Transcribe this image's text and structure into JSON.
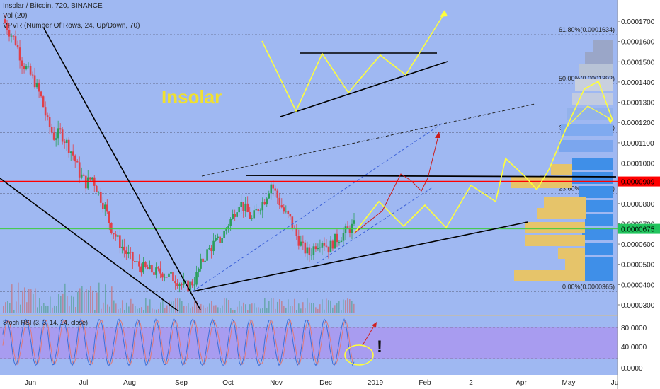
{
  "header": {
    "symbol_line": "Insolar / Bitcoin, 720, BINANCE",
    "volume_line": "Vol (20)",
    "vpvr_line": "VPVR (Number Of Rows, 24, Up/Down, 70)"
  },
  "watermark": "Insolar",
  "colors": {
    "background": "#9fb8f2",
    "rsi_band": "#a89cf0",
    "up_candle": "#2b9e5c",
    "down_candle": "#e0404a",
    "red_line": "#ff0000",
    "green_line": "#3ccc3c",
    "projection": "#ffff3a",
    "watermark": "#f0e030"
  },
  "price_axis": {
    "ticks": [
      "0.0001700",
      "0.0001600",
      "0.0001500",
      "0.0001400",
      "0.0001300",
      "0.0001200",
      "0.0001100",
      "0.0001000",
      "0.0000900",
      "0.0000800",
      "0.0000700",
      "0.0000600",
      "0.0000500",
      "0.0000400",
      "0.0000300"
    ],
    "badges": [
      {
        "label": "0.0000909",
        "value": 9.09e-05,
        "color": "#ff0000"
      },
      {
        "label": "0.0000675",
        "value": 6.75e-05,
        "color": "#22c55e"
      }
    ]
  },
  "fib_levels": [
    {
      "label": "61.80%(0.0001634)",
      "value": 0.0001634
    },
    {
      "label": "50.00%(0.0001392)",
      "value": 0.0001392
    },
    {
      "label": "38.20%(0.0001150)",
      "value": 0.000115
    },
    {
      "label": "23.60%(0.0000850)",
      "value": 8.5e-05
    },
    {
      "label": "0.00%(0.0000365)",
      "value": 3.65e-05
    }
  ],
  "time_axis": [
    "Jun",
    "Jul",
    "Aug",
    "Sep",
    "Oct",
    "Nov",
    "Dec",
    "2019",
    "Feb",
    "2",
    "Apr",
    "May",
    "Ju"
  ],
  "rsi": {
    "label": "Stoch RSI (3, 3, 14, 14, close)",
    "ticks": [
      "80.0000",
      "40.0000",
      "0.0000"
    ],
    "annotation": "!"
  },
  "chart_data": {
    "type": "candlestick",
    "title": "Insolar / Bitcoin, 720, BINANCE",
    "ylim": [
      2.6e-05,
      0.000175
    ],
    "series": [
      {
        "name": "price",
        "close": [
          0.000171,
          0.000165,
          0.00016,
          0.00015,
          0.000145,
          0.00014,
          0.000132,
          0.00012,
          0.000113,
          0.000115,
          0.00011,
          0.000104,
          9.5e-05,
          9e-05,
          9.3e-05,
          8.5e-05,
          7.8e-05,
          6.8e-05,
          6.2e-05,
          5.7e-05,
          5.3e-05,
          5e-05,
          4.8e-05,
          4.7e-05,
          4.6e-05,
          4.6e-05,
          4.4e-05,
          4.3e-05,
          4e-05,
          3.9e-05,
          4.2e-05,
          5e-05,
          5.6e-05,
          6e-05,
          6.2e-05,
          6.8e-05,
          7.4e-05,
          8.1e-05,
          7.7e-05,
          7.2e-05,
          7.8e-05,
          8.2e-05,
          9e-05,
          8.3e-05,
          7.6e-05,
          7.2e-05,
          6.4e-05,
          5.8e-05,
          5.5e-05,
          6e-05,
          6.2e-05,
          5.8e-05,
          6.2e-05,
          6.4e-05,
          6.7e-05,
          6.9e-05
        ]
      }
    ],
    "levels": [
      {
        "name": "resistance",
        "value": 9.09e-05
      },
      {
        "name": "current",
        "value": 6.75e-05
      }
    ]
  }
}
